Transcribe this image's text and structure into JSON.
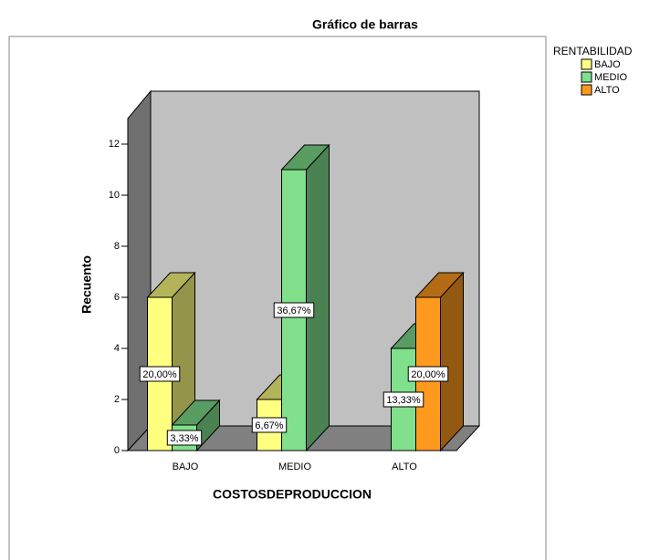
{
  "chart_data": {
    "type": "bar",
    "title": "Gráfico de barras",
    "xlabel": "COSTOSDEPRODUCCION",
    "ylabel": "Recuento",
    "legend_title": "RENTABILIDAD",
    "categories": [
      "BAJO",
      "MEDIO",
      "ALTO"
    ],
    "series": [
      {
        "name": "BAJO",
        "color": "#ffff80",
        "values": [
          6,
          2,
          null
        ],
        "value_labels": [
          "20,00%",
          "6,67%",
          null
        ]
      },
      {
        "name": "MEDIO",
        "color": "#80e08c",
        "values": [
          1,
          11,
          4
        ],
        "value_labels": [
          "3,33%",
          "36,67%",
          "13,33%"
        ]
      },
      {
        "name": "ALTO",
        "color": "#ff9a1e",
        "values": [
          null,
          null,
          6
        ],
        "value_labels": [
          null,
          null,
          "20,00%"
        ]
      }
    ],
    "ylim": [
      0,
      13
    ],
    "yticks": [
      0,
      2,
      4,
      6,
      8,
      10,
      12
    ]
  }
}
